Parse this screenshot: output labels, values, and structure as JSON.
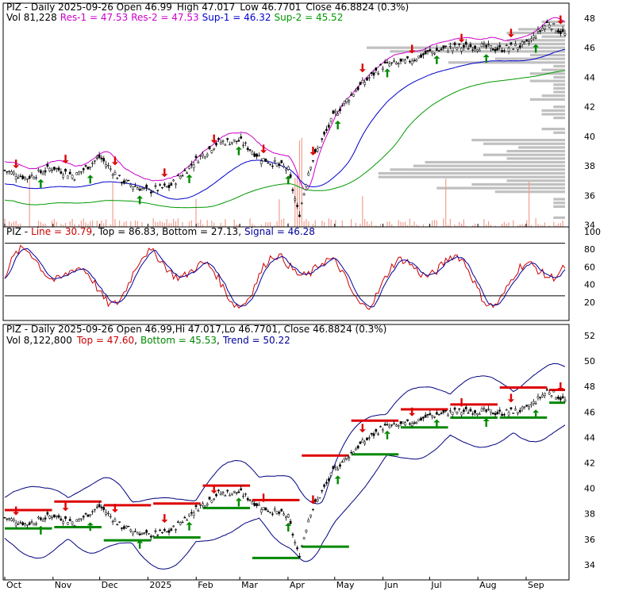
{
  "panel1": {
    "info_prefix": "PIZ - Daily 2025-09-26 Open 46.99",
    "info_high": "High 47.017",
    "info_low": "Low 46.7701",
    "info_close": "Close 46.8824 (0.3%)",
    "vol": "Vol 81,228",
    "res1": "Res-1 = 47.53",
    "res2": "Res-2 = 47.53",
    "sup1": "Sup-1 = 46.32",
    "sup2": "Sup-2 = 45.52",
    "yticks": [
      34,
      36,
      38,
      40,
      42,
      44,
      46,
      48
    ]
  },
  "panel2": {
    "ticker": "PIZ",
    "line": "Line = 30.79",
    "top": "Top = 86.83",
    "bottom": "Bottom = 27.13",
    "signal": "Signal = 46.28",
    "yticks": [
      20,
      40,
      60,
      80,
      100
    ]
  },
  "panel3": {
    "info": "PIZ - Daily 2025-09-26 Open 46.99,Hi 47.017,Lo 46.7701, Close 46.8824 (0.3%)",
    "vol": "Vol 8,122,800",
    "top": "Top = 47.60",
    "bottom": "Bottom = 45.53",
    "trend": "Trend = 50.22",
    "yticks": [
      34,
      36,
      38,
      40,
      42,
      44,
      46,
      48,
      50,
      52
    ]
  },
  "months": [
    "Oct",
    "Nov",
    "Dec",
    "2025",
    "Feb",
    "Mar",
    "Apr",
    "May",
    "Jun",
    "Jul",
    "Aug",
    "Sep"
  ],
  "colors": {
    "res": "#cc00cc",
    "sup1": "#0000cc",
    "sup2": "#009900",
    "up_arrow": "#008800",
    "down_arrow": "#dd0000",
    "volume": "#f0a090",
    "profile": "#c0c0c0",
    "line": "#cc0000",
    "signal": "#000099",
    "band": "#000080"
  },
  "chart_data": {
    "type": "line",
    "x": [
      "2024-10-01",
      "2024-10-15",
      "2024-11-01",
      "2024-11-15",
      "2024-12-01",
      "2024-12-15",
      "2025-01-01",
      "2025-01-15",
      "2025-02-01",
      "2025-02-15",
      "2025-03-01",
      "2025-03-15",
      "2025-04-01",
      "2025-04-08",
      "2025-04-15",
      "2025-05-01",
      "2025-05-15",
      "2025-06-01",
      "2025-06-15",
      "2025-07-01",
      "2025-07-15",
      "2025-08-01",
      "2025-08-15",
      "2025-09-01",
      "2025-09-15",
      "2025-09-26"
    ],
    "series": [
      {
        "name": "Close",
        "values": [
          37.7,
          37.2,
          37.9,
          37.3,
          38.6,
          37.0,
          36.3,
          36.6,
          38.4,
          39.6,
          39.7,
          38.5,
          37.8,
          34.6,
          38.0,
          41.5,
          43.2,
          44.8,
          45.0,
          45.7,
          46.0,
          46.1,
          45.9,
          46.2,
          47.7,
          46.88
        ]
      }
    ],
    "ylim": [
      33.5,
      48.8
    ],
    "levels": {
      "res1": 47.53,
      "res2": 47.53,
      "sup1": 46.32,
      "sup2": 45.52
    }
  }
}
